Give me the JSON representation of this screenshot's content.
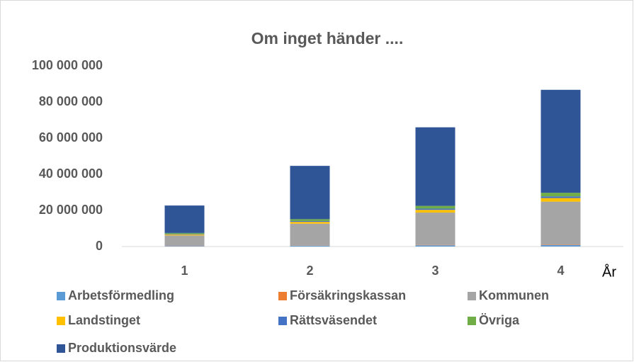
{
  "chart_data": {
    "type": "stacked_bar",
    "title": "Om inget händer ....",
    "x_label": "År",
    "categories": [
      "1",
      "2",
      "3",
      "4"
    ],
    "series": [
      {
        "name": "Arbetsförmedling",
        "color": "#5b9bd5",
        "values": [
          300000,
          500000,
          700000,
          900000
        ]
      },
      {
        "name": "Försäkringskassan",
        "color": "#ed7d31",
        "values": [
          100000,
          150000,
          200000,
          250000
        ]
      },
      {
        "name": "Kommunen",
        "color": "#a5a5a5",
        "values": [
          5800000,
          12000000,
          17900000,
          23700000
        ]
      },
      {
        "name": "Landstinget",
        "color": "#ffc000",
        "values": [
          500000,
          1000000,
          1500000,
          2000000
        ]
      },
      {
        "name": "Rättsväsendet",
        "color": "#4472c4",
        "values": [
          300000,
          500000,
          700000,
          900000
        ]
      },
      {
        "name": "Övriga",
        "color": "#70ad47",
        "values": [
          500000,
          1000000,
          1500000,
          2000000
        ]
      },
      {
        "name": "Produktionsvärde",
        "color": "#2f5597",
        "values": [
          15200000,
          29500000,
          43500000,
          57000000
        ]
      }
    ],
    "ylim": [
      0,
      100000000
    ],
    "yticks": [
      0,
      {
        "value": 20000000,
        "label": "20 000 000"
      },
      {
        "value": 40000000,
        "label": "40 000 000"
      },
      {
        "value": 60000000,
        "label": "60 000 000"
      },
      {
        "value": 80000000,
        "label": "80 000 000"
      },
      {
        "value": 100000000,
        "label": "100 000 000"
      }
    ],
    "grid": false,
    "legend": "bottom"
  }
}
